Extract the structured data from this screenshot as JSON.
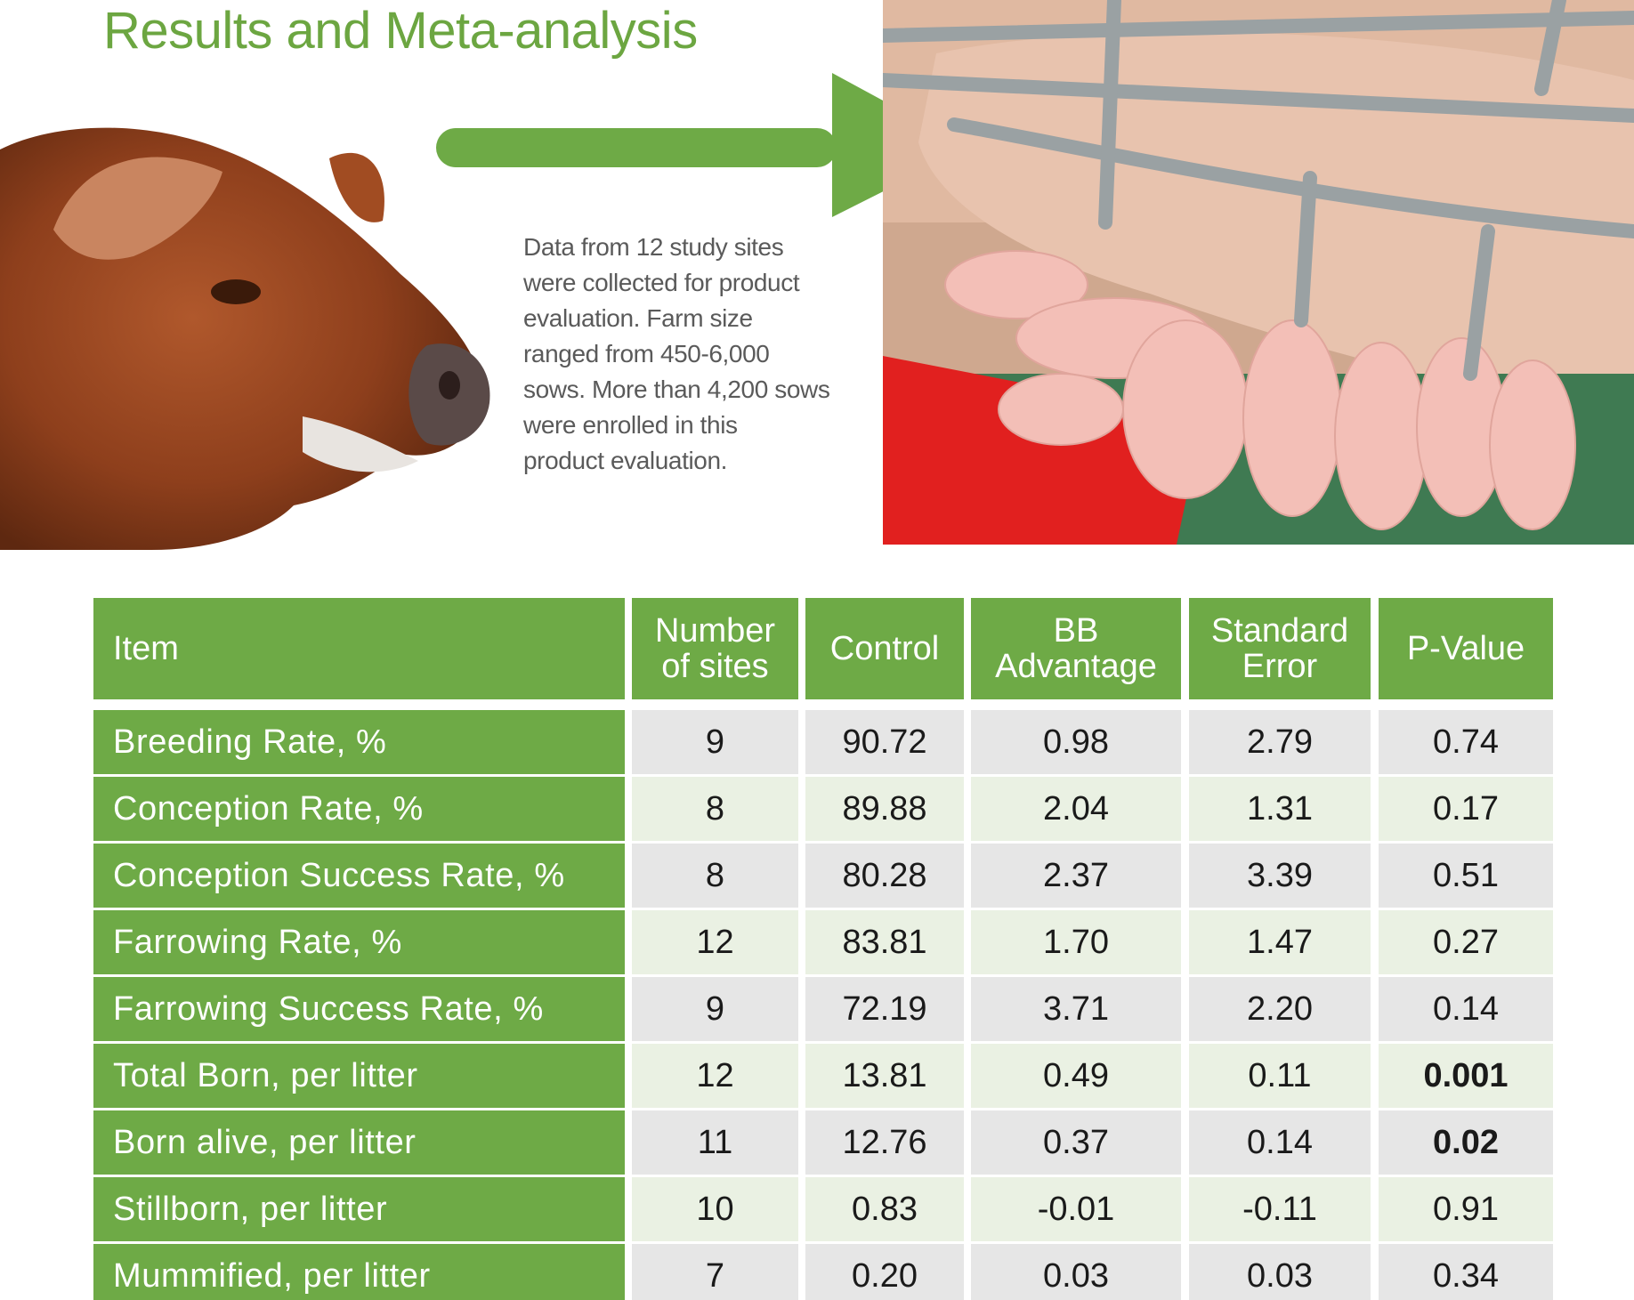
{
  "page": {
    "title": "Results and Meta-analysis",
    "intro_lines": [
      "Data from 12 study sites",
      "were collected for product",
      "evaluation.  Farm size",
      "ranged from 450-6,000",
      "sows. More than 4,200 sows",
      "were enrolled in this",
      "product evaluation."
    ]
  },
  "images": {
    "left": "red-pig-head-photo",
    "right": "sow-nursing-piglets-photo",
    "arrow": "green-right-arrow"
  },
  "colors": {
    "accent": "#6eaa46",
    "title": "#6ca641",
    "row_gray": "#e6e6e6",
    "row_light": "#eaf1e3"
  },
  "table": {
    "headers": {
      "item": "Item",
      "sites": [
        "Number",
        "of sites"
      ],
      "control": "Control",
      "advantage": [
        "BB",
        "Advantage"
      ],
      "se": [
        "Standard",
        "Error"
      ],
      "p": "P-Value"
    },
    "rows": [
      {
        "item": "Breeding Rate, %",
        "sites": "9",
        "control": "90.72",
        "advantage": "0.98",
        "se": "2.79",
        "p": "0.74",
        "bold": false
      },
      {
        "item": "Conception Rate, %",
        "sites": "8",
        "control": "89.88",
        "advantage": "2.04",
        "se": "1.31",
        "p": "0.17",
        "bold": false
      },
      {
        "item": "Conception Success Rate, %",
        "sites": "8",
        "control": "80.28",
        "advantage": "2.37",
        "se": "3.39",
        "p": "0.51",
        "bold": false
      },
      {
        "item": "Farrowing Rate, %",
        "sites": "12",
        "control": "83.81",
        "advantage": "1.70",
        "se": "1.47",
        "p": "0.27",
        "bold": false
      },
      {
        "item": "Farrowing Success Rate, %",
        "sites": "9",
        "control": "72.19",
        "advantage": "3.71",
        "se": "2.20",
        "p": "0.14",
        "bold": false
      },
      {
        "item": "Total Born, per litter",
        "sites": "12",
        "control": "13.81",
        "advantage": "0.49",
        "se": "0.11",
        "p": "0.001",
        "bold": true
      },
      {
        "item": "Born alive, per litter",
        "sites": "11",
        "control": "12.76",
        "advantage": "0.37",
        "se": "0.14",
        "p": "0.02",
        "bold": true
      },
      {
        "item": "Stillborn, per litter",
        "sites": "10",
        "control": "0.83",
        "advantage": "-0.01",
        "se": "-0.11",
        "p": "0.91",
        "bold": false
      },
      {
        "item": "Mummified, per litter",
        "sites": "7",
        "control": "0.20",
        "advantage": "0.03",
        "se": "0.03",
        "p": "0.34",
        "bold": false
      }
    ]
  }
}
